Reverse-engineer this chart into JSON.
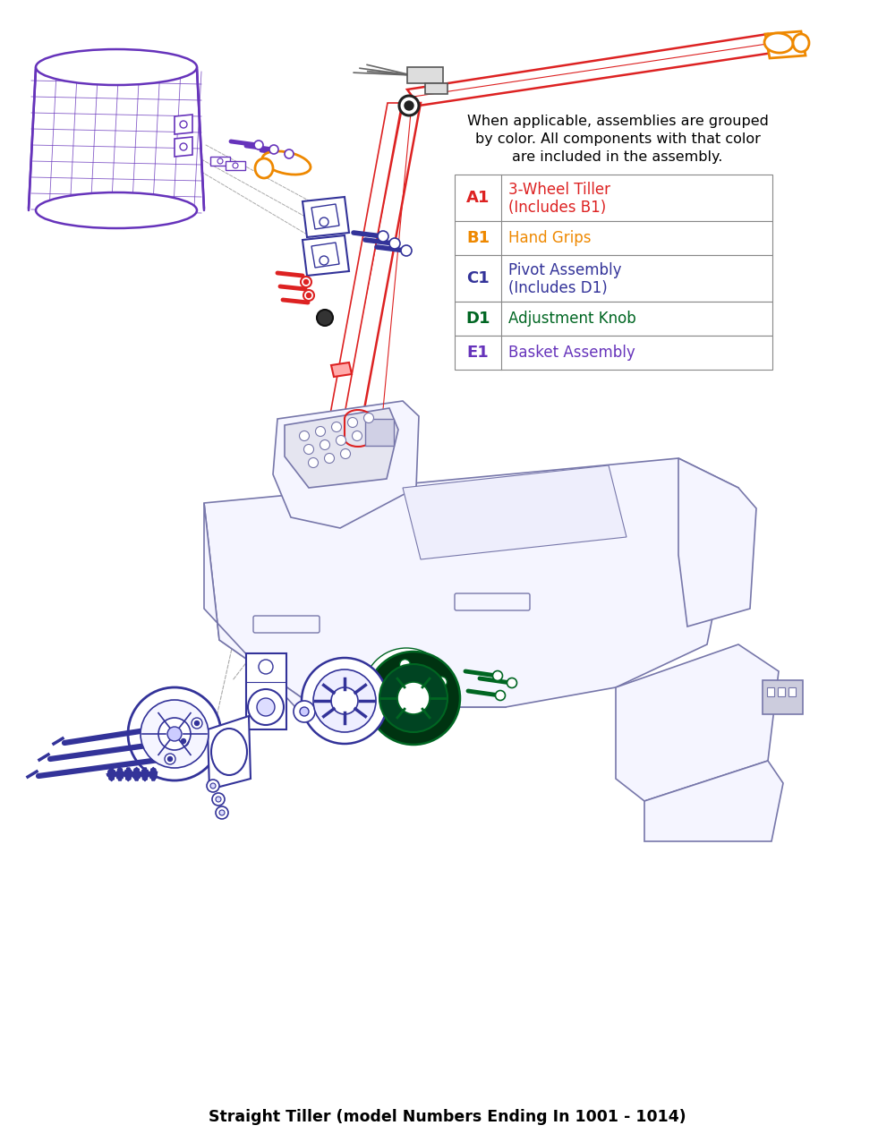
{
  "title": "Straight Tiller (model Numbers Ending In 1001 - 1014)",
  "bg_color": "#ffffff",
  "legend_text_line1": "When applicable, assemblies are grouped",
  "legend_text_line2": "by color. All components with that color",
  "legend_text_line3": "are included in the assembly.",
  "legend_items": [
    {
      "code": "A1",
      "label1": "3-Wheel Tiller",
      "label2": "(Includes B1)",
      "code_color": "#dd2222",
      "label_color": "#dd2222"
    },
    {
      "code": "B1",
      "label1": "Hand Grips",
      "label2": "",
      "code_color": "#ee8800",
      "label_color": "#ee8800"
    },
    {
      "code": "C1",
      "label1": "Pivot Assembly",
      "label2": "(Includes D1)",
      "code_color": "#333399",
      "label_color": "#333399"
    },
    {
      "code": "D1",
      "label1": "Adjustment Knob",
      "label2": "",
      "code_color": "#006622",
      "label_color": "#006622"
    },
    {
      "code": "E1",
      "label1": "Basket Assembly",
      "label2": "",
      "code_color": "#6633bb",
      "label_color": "#6633bb"
    }
  ],
  "colors": {
    "red": "#dd2222",
    "orange": "#ee8800",
    "dark_blue": "#333399",
    "green": "#006622",
    "purple": "#6633bb",
    "gray": "#999999",
    "ltgray": "#aaaaaa",
    "black": "#222222",
    "body_line": "#7777aa",
    "body_fill": "#f5f5ff"
  }
}
